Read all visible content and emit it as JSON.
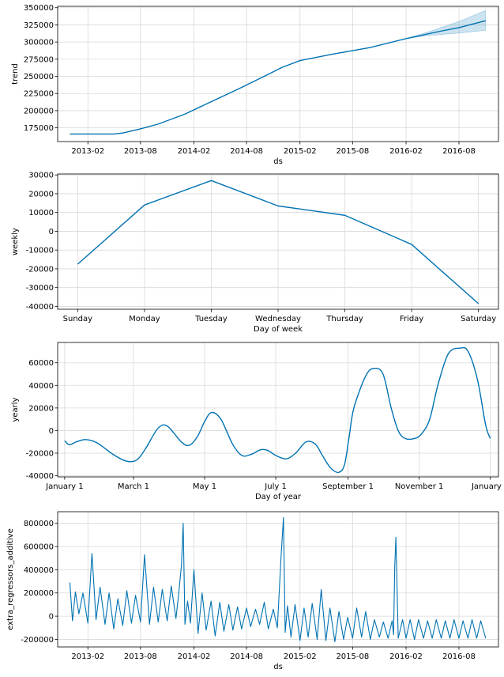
{
  "colors": {
    "line": "#0072B2",
    "band": "#0072B2",
    "grid": "#d9d9d9"
  },
  "chart_data": [
    {
      "type": "line",
      "ylabel": "trend",
      "xlabel": "ds",
      "x_axis": "date",
      "xlim": [
        "2012-10-20",
        "2016-12-15"
      ],
      "ylim": [
        155000,
        352000
      ],
      "grid": true,
      "xticks": [
        "2013-02",
        "2013-08",
        "2014-02",
        "2014-08",
        "2015-02",
        "2015-08",
        "2016-02",
        "2016-08"
      ],
      "yticks": [
        175000,
        200000,
        225000,
        250000,
        275000,
        300000,
        325000,
        350000
      ],
      "series": [
        {
          "x": [
            "2012-12-01",
            "2013-03-01",
            "2013-05-01",
            "2013-06-01",
            "2013-08-01",
            "2013-10-01",
            "2014-01-01",
            "2014-04-01",
            "2014-07-01",
            "2014-10-01",
            "2014-12-01",
            "2015-02-01",
            "2015-06-01",
            "2015-10-01",
            "2016-02-01",
            "2016-04-01",
            "2016-06-01",
            "2016-08-01",
            "2016-11-01"
          ],
          "y": [
            166000,
            166000,
            166000,
            167500,
            173500,
            180500,
            195000,
            213000,
            231000,
            250000,
            263000,
            273000,
            283000,
            292000,
            305000,
            310500,
            316000,
            321000,
            331000
          ],
          "upper": [
            166000,
            166000,
            166000,
            167500,
            173500,
            180500,
            195000,
            213000,
            231000,
            250000,
            263000,
            273000,
            283000,
            292000,
            305000,
            312500,
            321000,
            330000,
            346000
          ],
          "lower": [
            166000,
            166000,
            166000,
            167500,
            173500,
            180500,
            195000,
            213000,
            231000,
            250000,
            263000,
            273000,
            283000,
            292000,
            305000,
            308500,
            311000,
            313000,
            317000
          ]
        }
      ]
    },
    {
      "type": "line",
      "ylabel": "weekly",
      "xlabel": "Day of week",
      "ylim": [
        -41500,
        30500
      ],
      "grid": true,
      "categories": [
        "Sunday",
        "Monday",
        "Tuesday",
        "Wednesday",
        "Thursday",
        "Friday",
        "Saturday"
      ],
      "yticks": [
        -40000,
        -30000,
        -20000,
        -10000,
        0,
        10000,
        20000,
        30000
      ],
      "series": [
        {
          "values": [
            -17500,
            14000,
            27000,
            13500,
            8500,
            -7000,
            -38500
          ]
        }
      ]
    },
    {
      "type": "line",
      "ylabel": "yearly",
      "xlabel": "Day of year",
      "xlim": [
        -6,
        372
      ],
      "ylim": [
        -41000,
        78000
      ],
      "grid": true,
      "xticks": [
        {
          "label": "January 1",
          "day": 0
        },
        {
          "label": "March 1",
          "day": 59
        },
        {
          "label": "May 1",
          "day": 120
        },
        {
          "label": "July 1",
          "day": 181
        },
        {
          "label": "September 1",
          "day": 243
        },
        {
          "label": "November 1",
          "day": 304
        },
        {
          "label": "January 1",
          "day": 365
        }
      ],
      "yticks": [
        -40000,
        -20000,
        0,
        20000,
        40000,
        60000
      ],
      "series": [
        {
          "x": [
            0,
            4,
            10,
            18,
            28,
            40,
            50,
            57,
            63,
            70,
            80,
            88,
            100,
            107,
            114,
            120,
            126,
            134,
            144,
            152,
            160,
            168,
            174,
            181,
            190,
            198,
            207,
            215,
            221,
            228,
            235,
            240,
            244,
            248,
            258,
            265,
            273,
            280,
            286,
            292,
            300,
            306,
            313,
            320,
            329,
            339,
            346,
            354,
            361,
            365
          ],
          "y": [
            -9000,
            -12500,
            -10000,
            -8000,
            -11000,
            -20000,
            -26000,
            -27500,
            -25000,
            -15000,
            2000,
            4000,
            -10000,
            -13000,
            -5000,
            8000,
            16000,
            10000,
            -12000,
            -22000,
            -21000,
            -17000,
            -17500,
            -22000,
            -25000,
            -20000,
            -10000,
            -12000,
            -22000,
            -33000,
            -37000,
            -30000,
            -5000,
            20000,
            48000,
            55000,
            50000,
            20000,
            0,
            -7000,
            -7000,
            -3000,
            10000,
            40000,
            68000,
            73000,
            70000,
            45000,
            5000,
            -7000
          ]
        }
      ]
    },
    {
      "type": "line",
      "ylabel": "extra_regressors_additive",
      "xlabel": "ds",
      "x_axis": "date",
      "xlim": [
        "2012-10-20",
        "2016-12-15"
      ],
      "ylim": [
        -265000,
        900000
      ],
      "grid": true,
      "xticks": [
        "2013-02",
        "2013-08",
        "2014-02",
        "2014-08",
        "2015-02",
        "2015-08",
        "2016-02",
        "2016-08"
      ],
      "yticks": [
        -200000,
        0,
        200000,
        400000,
        600000,
        800000
      ],
      "series": [
        {
          "x": [
            "2012-12-01",
            "2012-12-10",
            "2012-12-20",
            "2013-01-01",
            "2013-01-15",
            "2013-02-01",
            "2013-02-15",
            "2013-03-01",
            "2013-03-15",
            "2013-04-01",
            "2013-04-15",
            "2013-05-01",
            "2013-05-15",
            "2013-06-01",
            "2013-06-15",
            "2013-07-01",
            "2013-07-15",
            "2013-08-01",
            "2013-08-15",
            "2013-09-01",
            "2013-09-15",
            "2013-10-01",
            "2013-10-15",
            "2013-11-01",
            "2013-11-15",
            "2013-12-01",
            "2013-12-10",
            "2013-12-20",
            "2013-12-26",
            "2014-01-01",
            "2014-01-10",
            "2014-01-20",
            "2014-02-01",
            "2014-02-15",
            "2014-03-01",
            "2014-03-15",
            "2014-04-01",
            "2014-04-15",
            "2014-05-01",
            "2014-05-15",
            "2014-06-01",
            "2014-06-15",
            "2014-07-01",
            "2014-07-15",
            "2014-08-01",
            "2014-08-15",
            "2014-09-01",
            "2014-09-15",
            "2014-10-01",
            "2014-10-15",
            "2014-11-01",
            "2014-11-15",
            "2014-11-28",
            "2014-12-06",
            "2014-12-12",
            "2014-12-20",
            "2015-01-01",
            "2015-01-15",
            "2015-02-01",
            "2015-02-15",
            "2015-03-01",
            "2015-03-15",
            "2015-04-01",
            "2015-04-15",
            "2015-05-01",
            "2015-05-15",
            "2015-06-01",
            "2015-06-15",
            "2015-07-01",
            "2015-07-15",
            "2015-08-01",
            "2015-08-15",
            "2015-09-01",
            "2015-09-15",
            "2015-10-01",
            "2015-10-15",
            "2015-11-01",
            "2015-11-15",
            "2015-12-01",
            "2015-12-15",
            "2015-12-20",
            "2015-12-24",
            "2015-12-28",
            "2016-01-05",
            "2016-01-20",
            "2016-02-01",
            "2016-02-15",
            "2016-03-01",
            "2016-03-15",
            "2016-04-01",
            "2016-04-15",
            "2016-05-01",
            "2016-05-15",
            "2016-06-01",
            "2016-06-15",
            "2016-07-01",
            "2016-07-15",
            "2016-08-01",
            "2016-08-15",
            "2016-09-01",
            "2016-09-15",
            "2016-10-01",
            "2016-10-15",
            "2016-11-01"
          ],
          "y": [
            290000,
            -40000,
            210000,
            20000,
            200000,
            -60000,
            540000,
            -30000,
            250000,
            -70000,
            200000,
            -110000,
            150000,
            -80000,
            220000,
            -60000,
            180000,
            -50000,
            530000,
            -70000,
            250000,
            -50000,
            230000,
            -40000,
            260000,
            -20000,
            180000,
            440000,
            800000,
            -70000,
            130000,
            -60000,
            400000,
            -150000,
            200000,
            -120000,
            130000,
            -170000,
            120000,
            -130000,
            100000,
            -120000,
            80000,
            -110000,
            70000,
            -90000,
            60000,
            -70000,
            120000,
            -110000,
            60000,
            -100000,
            520000,
            850000,
            -140000,
            90000,
            -180000,
            100000,
            -210000,
            70000,
            -180000,
            110000,
            -200000,
            230000,
            -210000,
            70000,
            -220000,
            40000,
            -200000,
            -10000,
            -190000,
            70000,
            -180000,
            40000,
            -200000,
            -30000,
            -180000,
            -50000,
            -190000,
            -40000,
            -160000,
            420000,
            680000,
            -190000,
            -30000,
            -190000,
            -30000,
            -200000,
            -30000,
            -190000,
            -40000,
            -190000,
            -30000,
            -190000,
            -40000,
            -190000,
            -30000,
            -190000,
            -40000,
            -190000,
            -30000,
            -190000,
            -40000,
            -190000
          ]
        }
      ]
    }
  ]
}
